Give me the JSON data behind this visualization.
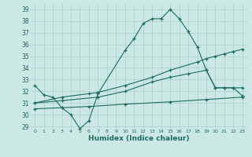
{
  "xlabel": "Humidex (Indice chaleur)",
  "bg_color": "#cce8e4",
  "line_color": "#1a6b62",
  "grid_color": "#aacfcc",
  "xlim": [
    -0.5,
    23.5
  ],
  "ylim": [
    28.8,
    39.4
  ],
  "yticks": [
    29,
    30,
    31,
    32,
    33,
    34,
    35,
    36,
    37,
    38,
    39
  ],
  "xticks": [
    0,
    1,
    2,
    3,
    4,
    5,
    6,
    7,
    8,
    9,
    10,
    11,
    12,
    13,
    14,
    15,
    16,
    17,
    18,
    19,
    20,
    21,
    22,
    23
  ],
  "series": [
    {
      "x": [
        0,
        1,
        2,
        3,
        4,
        5,
        6,
        7,
        10,
        11,
        12,
        13,
        14,
        15,
        16,
        17,
        18,
        19,
        20,
        21,
        22,
        23
      ],
      "y": [
        32.5,
        31.7,
        31.5,
        30.6,
        30.0,
        28.8,
        29.5,
        31.8,
        35.5,
        36.5,
        37.8,
        38.2,
        38.2,
        39.0,
        38.2,
        37.1,
        35.8,
        33.8,
        32.3,
        32.3,
        32.3,
        31.6
      ]
    },
    {
      "x": [
        0,
        3,
        6,
        7,
        10,
        13,
        15,
        18,
        19,
        20,
        21,
        22,
        23
      ],
      "y": [
        31.0,
        31.5,
        31.8,
        31.9,
        32.5,
        33.2,
        33.8,
        34.5,
        34.8,
        35.0,
        35.2,
        35.4,
        35.6
      ]
    },
    {
      "x": [
        0,
        3,
        6,
        10,
        15,
        19,
        23
      ],
      "y": [
        30.5,
        30.6,
        30.7,
        30.9,
        31.1,
        31.3,
        31.5
      ]
    },
    {
      "x": [
        0,
        3,
        7,
        10,
        13,
        15,
        17,
        19,
        20,
        21,
        22,
        23
      ],
      "y": [
        31.0,
        31.2,
        31.5,
        32.0,
        32.8,
        33.2,
        33.5,
        33.8,
        32.3,
        32.3,
        32.3,
        32.3
      ]
    }
  ]
}
